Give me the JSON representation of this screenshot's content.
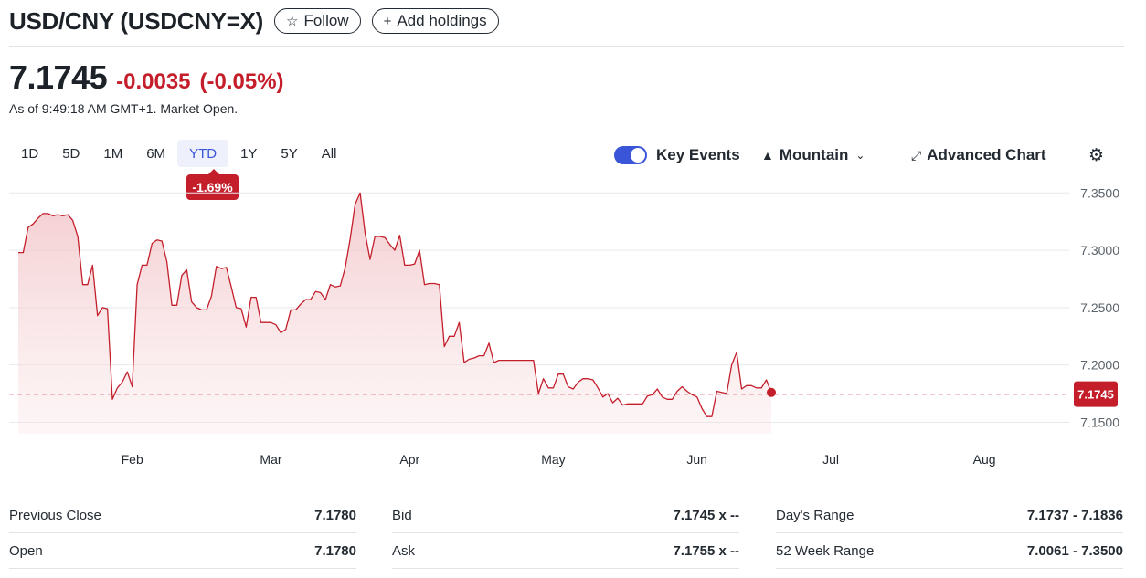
{
  "header": {
    "title": "USD/CNY (USDCNY=X)",
    "follow_label": "Follow",
    "add_holdings_label": "Add holdings"
  },
  "quote": {
    "price": "7.1745",
    "change": "-0.0035",
    "change_percent": "(-0.05%)",
    "as_of": "As of 9:49:18 AM GMT+1. Market Open."
  },
  "ranges": {
    "items": [
      "1D",
      "5D",
      "1M",
      "6M",
      "YTD",
      "1Y",
      "5Y",
      "All"
    ],
    "active": "YTD",
    "active_change": "-1.69%"
  },
  "toolbar": {
    "key_events_label": "Key Events",
    "chart_type_label": "Mountain",
    "advanced_chart_label": "Advanced Chart"
  },
  "icons": {
    "follow": "star-icon",
    "add": "plus-icon",
    "chart_type": "mountain-icon",
    "advanced": "expand-arrows-icon",
    "settings": "gear-icon"
  },
  "colors": {
    "negative": "#c41e2b",
    "accent": "#3b55d9",
    "line": "#c41e2b",
    "area_top": "#f2c3c7"
  },
  "chart_data": {
    "type": "area",
    "title": "",
    "xlabel": "",
    "ylabel": "",
    "ylim": [
      7.14,
      7.355
    ],
    "y_ticks": [
      "7.3500",
      "7.3000",
      "7.2500",
      "7.2000",
      "7.1500"
    ],
    "x_labels": [
      {
        "label": "Feb",
        "day": 24
      },
      {
        "label": "Mar",
        "day": 52
      },
      {
        "label": "Apr",
        "day": 80
      },
      {
        "label": "May",
        "day": 109
      },
      {
        "label": "Jun",
        "day": 138
      },
      {
        "label": "Jul",
        "day": 165
      },
      {
        "label": "Aug",
        "day": 196
      }
    ],
    "x_range_days": [
      1,
      210
    ],
    "current_price": 7.1745,
    "current_price_label": "7.1745",
    "reference_line": 7.1745,
    "grid": true,
    "series": [
      {
        "points": [
          [
            1,
            7.298
          ],
          [
            2,
            7.298
          ],
          [
            3,
            7.32
          ],
          [
            4,
            7.323
          ],
          [
            5,
            7.328
          ],
          [
            6,
            7.332
          ],
          [
            7,
            7.332
          ],
          [
            8,
            7.33
          ],
          [
            9,
            7.331
          ],
          [
            10,
            7.33
          ],
          [
            11,
            7.331
          ],
          [
            12,
            7.326
          ],
          [
            13,
            7.312
          ],
          [
            14,
            7.27
          ],
          [
            15,
            7.27
          ],
          [
            16,
            7.287
          ],
          [
            17,
            7.243
          ],
          [
            18,
            7.25
          ],
          [
            19,
            7.249
          ],
          [
            20,
            7.17
          ],
          [
            21,
            7.18
          ],
          [
            22,
            7.185
          ],
          [
            23,
            7.194
          ],
          [
            24,
            7.181
          ],
          [
            25,
            7.27
          ],
          [
            26,
            7.287
          ],
          [
            27,
            7.287
          ],
          [
            28,
            7.306
          ],
          [
            29,
            7.309
          ],
          [
            30,
            7.308
          ],
          [
            31,
            7.29
          ],
          [
            32,
            7.252
          ],
          [
            33,
            7.252
          ],
          [
            34,
            7.278
          ],
          [
            35,
            7.283
          ],
          [
            36,
            7.255
          ],
          [
            37,
            7.25
          ],
          [
            38,
            7.248
          ],
          [
            39,
            7.248
          ],
          [
            40,
            7.26
          ],
          [
            41,
            7.286
          ],
          [
            42,
            7.284
          ],
          [
            43,
            7.285
          ],
          [
            44,
            7.268
          ],
          [
            45,
            7.25
          ],
          [
            46,
            7.249
          ],
          [
            47,
            7.233
          ],
          [
            48,
            7.259
          ],
          [
            49,
            7.259
          ],
          [
            50,
            7.237
          ],
          [
            51,
            7.237
          ],
          [
            52,
            7.237
          ],
          [
            53,
            7.235
          ],
          [
            54,
            7.228
          ],
          [
            55,
            7.231
          ],
          [
            56,
            7.248
          ],
          [
            57,
            7.248
          ],
          [
            58,
            7.253
          ],
          [
            59,
            7.257
          ],
          [
            60,
            7.257
          ],
          [
            61,
            7.264
          ],
          [
            62,
            7.263
          ],
          [
            63,
            7.257
          ],
          [
            64,
            7.27
          ],
          [
            65,
            7.268
          ],
          [
            66,
            7.269
          ],
          [
            67,
            7.285
          ],
          [
            68,
            7.31
          ],
          [
            69,
            7.34
          ],
          [
            70,
            7.35
          ],
          [
            71,
            7.315
          ],
          [
            72,
            7.292
          ],
          [
            73,
            7.312
          ],
          [
            74,
            7.312
          ],
          [
            75,
            7.311
          ],
          [
            76,
            7.305
          ],
          [
            77,
            7.3
          ],
          [
            78,
            7.313
          ],
          [
            79,
            7.287
          ],
          [
            80,
            7.287
          ],
          [
            81,
            7.288
          ],
          [
            82,
            7.3
          ],
          [
            83,
            7.27
          ],
          [
            84,
            7.271
          ],
          [
            85,
            7.271
          ],
          [
            86,
            7.27
          ],
          [
            87,
            7.216
          ],
          [
            88,
            7.225
          ],
          [
            89,
            7.225
          ],
          [
            90,
            7.237
          ],
          [
            91,
            7.202
          ],
          [
            92,
            7.205
          ],
          [
            93,
            7.206
          ],
          [
            94,
            7.208
          ],
          [
            95,
            7.208
          ],
          [
            96,
            7.219
          ],
          [
            97,
            7.202
          ],
          [
            98,
            7.204
          ],
          [
            99,
            7.204
          ],
          [
            100,
            7.204
          ],
          [
            101,
            7.204
          ],
          [
            102,
            7.204
          ],
          [
            103,
            7.204
          ],
          [
            104,
            7.204
          ],
          [
            105,
            7.204
          ],
          [
            106,
            7.175
          ],
          [
            107,
            7.188
          ],
          [
            108,
            7.18
          ],
          [
            109,
            7.18
          ],
          [
            110,
            7.192
          ],
          [
            111,
            7.192
          ],
          [
            112,
            7.181
          ],
          [
            113,
            7.179
          ],
          [
            114,
            7.185
          ],
          [
            115,
            7.188
          ],
          [
            116,
            7.188
          ],
          [
            117,
            7.187
          ],
          [
            118,
            7.18
          ],
          [
            119,
            7.172
          ],
          [
            120,
            7.175
          ],
          [
            121,
            7.167
          ],
          [
            122,
            7.171
          ],
          [
            123,
            7.165
          ],
          [
            124,
            7.166
          ],
          [
            125,
            7.166
          ],
          [
            126,
            7.166
          ],
          [
            127,
            7.166
          ],
          [
            128,
            7.173
          ],
          [
            129,
            7.174
          ],
          [
            130,
            7.179
          ],
          [
            131,
            7.172
          ],
          [
            132,
            7.17
          ],
          [
            133,
            7.17
          ],
          [
            134,
            7.177
          ],
          [
            135,
            7.181
          ],
          [
            136,
            7.177
          ],
          [
            137,
            7.174
          ],
          [
            138,
            7.172
          ],
          [
            139,
            7.162
          ],
          [
            140,
            7.155
          ],
          [
            141,
            7.155
          ],
          [
            142,
            7.177
          ],
          [
            143,
            7.176
          ],
          [
            144,
            7.175
          ],
          [
            145,
            7.2
          ],
          [
            146,
            7.211
          ],
          [
            147,
            7.179
          ],
          [
            148,
            7.182
          ],
          [
            149,
            7.182
          ],
          [
            150,
            7.18
          ],
          [
            151,
            7.18
          ],
          [
            152,
            7.187
          ],
          [
            153,
            7.176
          ]
        ]
      }
    ]
  },
  "stats": [
    [
      {
        "label": "Previous Close",
        "value": "7.1780"
      },
      {
        "label": "Open",
        "value": "7.1780"
      }
    ],
    [
      {
        "label": "Bid",
        "value": "7.1745 x --"
      },
      {
        "label": "Ask",
        "value": "7.1755 x --"
      }
    ],
    [
      {
        "label": "Day's Range",
        "value": "7.1737 - 7.1836"
      },
      {
        "label": "52 Week Range",
        "value": "7.0061 - 7.3500"
      }
    ]
  ]
}
